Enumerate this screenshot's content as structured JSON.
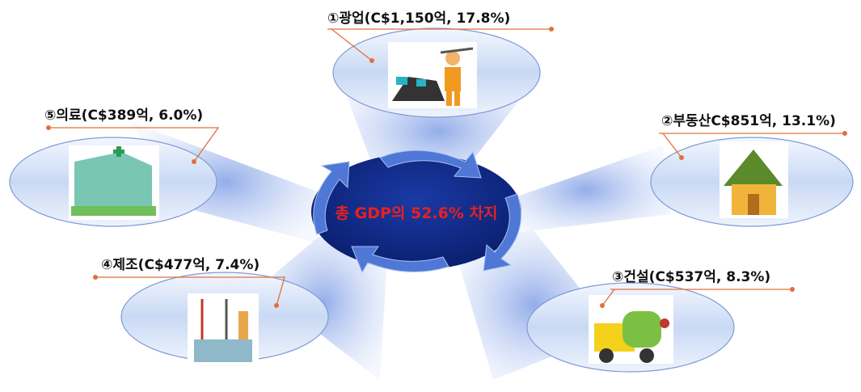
{
  "center": {
    "label": "총 GDP의 52.6% 차지"
  },
  "nodes": [
    {
      "label": "①광업(C$1,150억, 17.8%)"
    },
    {
      "label": "②부동산C$851억, 13.1%)"
    },
    {
      "label": "③건설(C$537억, 8.3%)"
    },
    {
      "label": "④제조(C$477억, 7.4%)"
    },
    {
      "label": "⑤의료(C$389억, 6.0%)"
    }
  ]
}
